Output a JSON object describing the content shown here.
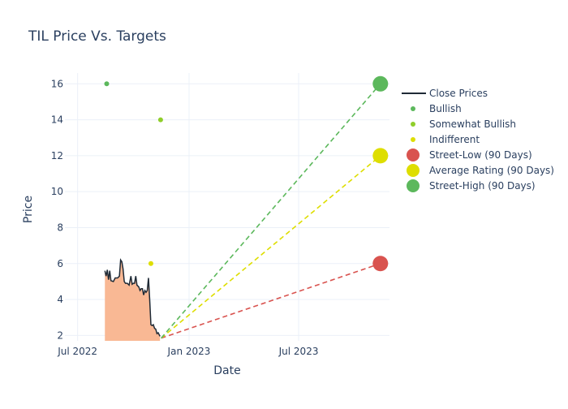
{
  "chart_data": {
    "type": "line",
    "title": "TIL Price Vs. Targets",
    "xlabel": "Date",
    "ylabel": "Price",
    "ylim": [
      1.7,
      16.6
    ],
    "xlim": [
      "2022-06-10",
      "2023-11-28"
    ],
    "x_ticks": [
      {
        "date": "2022-07-01",
        "label": "Jul 2022"
      },
      {
        "date": "2023-01-01",
        "label": "Jan 2023"
      },
      {
        "date": "2023-07-01",
        "label": "Jul 2023"
      }
    ],
    "y_ticks": [
      2,
      4,
      6,
      8,
      10,
      12,
      14,
      16
    ],
    "grid": true,
    "legend_position": "top-right",
    "legend": [
      {
        "key": "close",
        "label": "Close Prices",
        "symbol": "line",
        "color": "#1f2a36"
      },
      {
        "key": "bullish",
        "label": "Bullish",
        "symbol": "small-dot",
        "color": "#5cb85c"
      },
      {
        "key": "somewhat_bullish",
        "label": "Somewhat Bullish",
        "symbol": "small-dot",
        "color": "#8fce2a"
      },
      {
        "key": "indifferent",
        "label": "Indifferent",
        "symbol": "small-dot",
        "color": "#dede00"
      },
      {
        "key": "street_low",
        "label": "Street-Low (90 Days)",
        "symbol": "big-dot",
        "color": "#d9534f"
      },
      {
        "key": "average",
        "label": "Average Rating (90 Days)",
        "symbol": "big-dot",
        "color": "#dede00"
      },
      {
        "key": "street_high",
        "label": "Street-High (90 Days)",
        "symbol": "big-dot",
        "color": "#5cb85c"
      }
    ],
    "series": [
      {
        "name": "Close Prices",
        "color": "#1f2a36",
        "fill_color": "#f9b894",
        "points": [
          [
            "2022-08-15",
            5.6
          ],
          [
            "2022-08-17",
            5.3
          ],
          [
            "2022-08-19",
            5.65
          ],
          [
            "2022-08-21",
            5.1
          ],
          [
            "2022-08-23",
            5.6
          ],
          [
            "2022-08-25",
            5.05
          ],
          [
            "2022-08-29",
            5.0
          ],
          [
            "2022-09-01",
            5.2
          ],
          [
            "2022-09-05",
            5.2
          ],
          [
            "2022-09-08",
            5.3
          ],
          [
            "2022-09-10",
            6.2
          ],
          [
            "2022-09-12",
            6.1
          ],
          [
            "2022-09-14",
            5.7
          ],
          [
            "2022-09-16",
            5.0
          ],
          [
            "2022-09-18",
            4.9
          ],
          [
            "2022-09-21",
            4.9
          ],
          [
            "2022-09-24",
            4.8
          ],
          [
            "2022-09-27",
            5.3
          ],
          [
            "2022-09-29",
            4.85
          ],
          [
            "2022-10-01",
            4.9
          ],
          [
            "2022-10-03",
            4.9
          ],
          [
            "2022-10-05",
            5.3
          ],
          [
            "2022-10-07",
            4.8
          ],
          [
            "2022-10-10",
            4.7
          ],
          [
            "2022-10-12",
            4.5
          ],
          [
            "2022-10-14",
            4.6
          ],
          [
            "2022-10-16",
            4.6
          ],
          [
            "2022-10-18",
            4.25
          ],
          [
            "2022-10-20",
            4.5
          ],
          [
            "2022-10-22",
            4.4
          ],
          [
            "2022-10-24",
            4.5
          ],
          [
            "2022-10-26",
            5.2
          ],
          [
            "2022-10-28",
            4.0
          ],
          [
            "2022-10-30",
            2.6
          ],
          [
            "2022-11-01",
            2.55
          ],
          [
            "2022-11-03",
            2.6
          ],
          [
            "2022-11-05",
            2.4
          ],
          [
            "2022-11-07",
            2.35
          ],
          [
            "2022-11-09",
            2.1
          ],
          [
            "2022-11-11",
            2.15
          ],
          [
            "2022-11-14",
            1.95
          ]
        ]
      }
    ],
    "ratings": [
      {
        "type": "bullish",
        "date": "2022-08-18",
        "value": 16
      },
      {
        "type": "somewhat_bullish",
        "date": "2022-11-15",
        "value": 14
      },
      {
        "type": "indifferent",
        "date": "2022-10-30",
        "value": 6
      }
    ],
    "targets": {
      "start": {
        "date": "2022-11-16",
        "value": 1.85
      },
      "end_date": "2023-11-13",
      "lines": [
        {
          "type": "street_low",
          "value": 6,
          "color": "#d9534f"
        },
        {
          "type": "average",
          "value": 12,
          "color": "#dede00"
        },
        {
          "type": "street_high",
          "value": 16,
          "color": "#5cb85c"
        }
      ]
    }
  }
}
